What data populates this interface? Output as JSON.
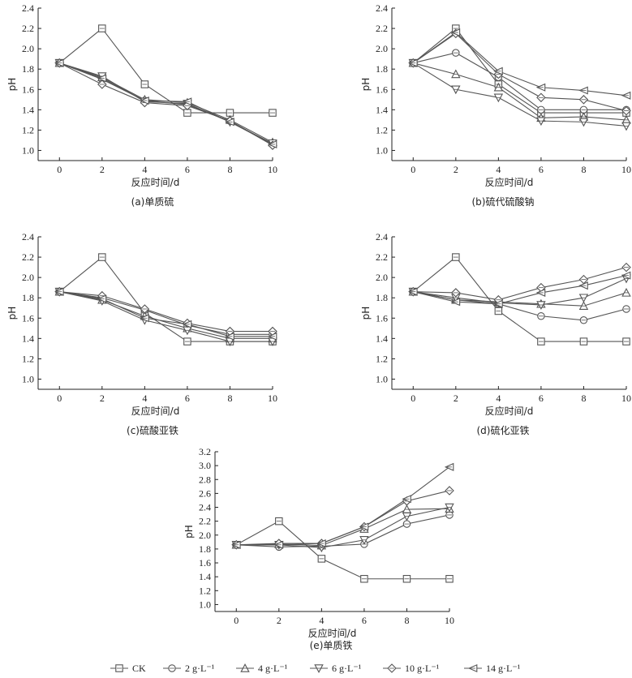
{
  "legend": {
    "items": [
      {
        "label": "CK",
        "marker": "square"
      },
      {
        "label": "2 g·L⁻¹",
        "marker": "circle"
      },
      {
        "label": "4 g·L⁻¹",
        "marker": "triangle-up"
      },
      {
        "label": "6 g·L⁻¹",
        "marker": "triangle-down"
      },
      {
        "label": "10 g·L⁻¹",
        "marker": "diamond"
      },
      {
        "label": "14 g·L⁻¹",
        "marker": "triangle-left"
      }
    ]
  },
  "colors": {
    "line": "#555555",
    "marker_fill": "#ffffff",
    "axis": "#222222"
  },
  "chart_data": [
    {
      "type": "line",
      "caption": "(a)单质硫",
      "xlabel": "反应时间/d",
      "ylabel": "pH",
      "x": [
        0,
        2,
        4,
        6,
        8,
        10
      ],
      "xlim": [
        -1,
        10
      ],
      "ylim": [
        0.9,
        2.4
      ],
      "yticks": [
        "1.0",
        "1.2",
        "1.4",
        "1.6",
        "1.8",
        "2.0",
        "2.2",
        "2.4"
      ],
      "series": [
        {
          "name": "CK",
          "values": [
            1.86,
            2.2,
            1.65,
            1.37,
            1.37,
            1.37
          ]
        },
        {
          "name": "2 g·L⁻¹",
          "values": [
            1.86,
            1.7,
            1.49,
            1.45,
            1.29,
            1.06
          ]
        },
        {
          "name": "4 g·L⁻¹",
          "values": [
            1.86,
            1.72,
            1.5,
            1.47,
            1.3,
            1.08
          ]
        },
        {
          "name": "6 g·L⁻¹",
          "values": [
            1.86,
            1.73,
            1.48,
            1.46,
            1.28,
            1.07
          ]
        },
        {
          "name": "10 g·L⁻¹",
          "values": [
            1.86,
            1.65,
            1.47,
            1.44,
            1.29,
            1.05
          ]
        },
        {
          "name": "14 g·L⁻¹",
          "values": [
            1.86,
            1.71,
            1.49,
            1.48,
            1.28,
            1.06
          ]
        }
      ]
    },
    {
      "type": "line",
      "caption": "(b)硫代硫酸钠",
      "xlabel": "反应时间/d",
      "ylabel": "pH",
      "x": [
        0,
        2,
        4,
        6,
        8,
        10
      ],
      "xlim": [
        -1,
        10
      ],
      "ylim": [
        0.9,
        2.4
      ],
      "yticks": [
        "1.0",
        "1.2",
        "1.4",
        "1.6",
        "1.8",
        "2.0",
        "2.2",
        "2.4"
      ],
      "series": [
        {
          "name": "CK",
          "values": [
            1.86,
            2.2,
            1.65,
            1.37,
            1.37,
            1.37
          ]
        },
        {
          "name": "2 g·L⁻¹",
          "values": [
            1.86,
            1.96,
            1.72,
            1.4,
            1.4,
            1.4
          ]
        },
        {
          "name": "4 g·L⁻¹",
          "values": [
            1.86,
            1.75,
            1.62,
            1.32,
            1.33,
            1.3
          ]
        },
        {
          "name": "6 g·L⁻¹",
          "values": [
            1.86,
            1.6,
            1.52,
            1.29,
            1.28,
            1.24
          ]
        },
        {
          "name": "10 g·L⁻¹",
          "values": [
            1.86,
            2.15,
            1.75,
            1.52,
            1.5,
            1.39
          ]
        },
        {
          "name": "14 g·L⁻¹",
          "values": [
            1.86,
            2.16,
            1.78,
            1.62,
            1.59,
            1.54
          ]
        }
      ]
    },
    {
      "type": "line",
      "caption": "(c)硫酸亚铁",
      "xlabel": "反应时间/d",
      "ylabel": "pH",
      "x": [
        0,
        2,
        4,
        6,
        8,
        10
      ],
      "xlim": [
        -1,
        10
      ],
      "ylim": [
        0.9,
        2.4
      ],
      "yticks": [
        "1.0",
        "1.2",
        "1.4",
        "1.6",
        "1.8",
        "2.0",
        "2.2",
        "2.4"
      ],
      "series": [
        {
          "name": "CK",
          "values": [
            1.86,
            2.2,
            1.65,
            1.37,
            1.37,
            1.37
          ]
        },
        {
          "name": "2 g·L⁻¹",
          "values": [
            1.86,
            1.8,
            1.68,
            1.53,
            1.44,
            1.44
          ]
        },
        {
          "name": "4 g·L⁻¹",
          "values": [
            1.86,
            1.78,
            1.62,
            1.5,
            1.4,
            1.4
          ]
        },
        {
          "name": "6 g·L⁻¹",
          "values": [
            1.86,
            1.77,
            1.58,
            1.48,
            1.37,
            1.37
          ]
        },
        {
          "name": "10 g·L⁻¹",
          "values": [
            1.86,
            1.82,
            1.69,
            1.55,
            1.47,
            1.47
          ]
        },
        {
          "name": "14 g·L⁻¹",
          "values": [
            1.86,
            1.79,
            1.6,
            1.54,
            1.42,
            1.42
          ]
        }
      ]
    },
    {
      "type": "line",
      "caption": "(d)硫化亚铁",
      "xlabel": "反应时间/d",
      "ylabel": "pH",
      "x": [
        0,
        2,
        4,
        6,
        8,
        10
      ],
      "xlim": [
        -1,
        10
      ],
      "ylim": [
        0.9,
        2.4
      ],
      "yticks": [
        "1.0",
        "1.2",
        "1.4",
        "1.6",
        "1.8",
        "2.0",
        "2.2",
        "2.4"
      ],
      "series": [
        {
          "name": "CK",
          "values": [
            1.86,
            2.2,
            1.67,
            1.37,
            1.37,
            1.37
          ]
        },
        {
          "name": "2 g·L⁻¹",
          "values": [
            1.86,
            1.78,
            1.74,
            1.62,
            1.58,
            1.69
          ]
        },
        {
          "name": "4 g·L⁻¹",
          "values": [
            1.86,
            1.78,
            1.76,
            1.74,
            1.72,
            1.85
          ]
        },
        {
          "name": "6 g·L⁻¹",
          "values": [
            1.86,
            1.8,
            1.75,
            1.73,
            1.8,
            1.99
          ]
        },
        {
          "name": "10 g·L⁻¹",
          "values": [
            1.86,
            1.85,
            1.78,
            1.9,
            1.98,
            2.1
          ]
        },
        {
          "name": "14 g·L⁻¹",
          "values": [
            1.86,
            1.76,
            1.74,
            1.85,
            1.92,
            2.02
          ]
        }
      ]
    },
    {
      "type": "line",
      "caption": "(e)单质铁",
      "xlabel": "反应时间/d",
      "ylabel": "pH",
      "x": [
        0,
        2,
        4,
        6,
        8,
        10
      ],
      "xlim": [
        -1,
        10
      ],
      "ylim": [
        0.9,
        3.2
      ],
      "yticks": [
        "1.0",
        "1.2",
        "1.4",
        "1.6",
        "1.8",
        "2.0",
        "2.2",
        "2.4",
        "2.6",
        "2.8",
        "3.0",
        "3.2"
      ],
      "series": [
        {
          "name": "CK",
          "values": [
            1.86,
            2.2,
            1.66,
            1.37,
            1.37,
            1.37
          ]
        },
        {
          "name": "2 g·L⁻¹",
          "values": [
            1.86,
            1.83,
            1.84,
            1.87,
            2.16,
            2.29
          ]
        },
        {
          "name": "4 g·L⁻¹",
          "values": [
            1.86,
            1.87,
            1.85,
            2.09,
            2.37,
            2.38
          ]
        },
        {
          "name": "6 g·L⁻¹",
          "values": [
            1.86,
            1.86,
            1.82,
            1.93,
            2.27,
            2.4
          ]
        },
        {
          "name": "10 g·L⁻¹",
          "values": [
            1.86,
            1.88,
            1.88,
            2.12,
            2.49,
            2.64
          ]
        },
        {
          "name": "14 g·L⁻¹",
          "values": [
            1.86,
            1.86,
            1.88,
            2.12,
            2.52,
            2.98
          ]
        }
      ]
    }
  ]
}
